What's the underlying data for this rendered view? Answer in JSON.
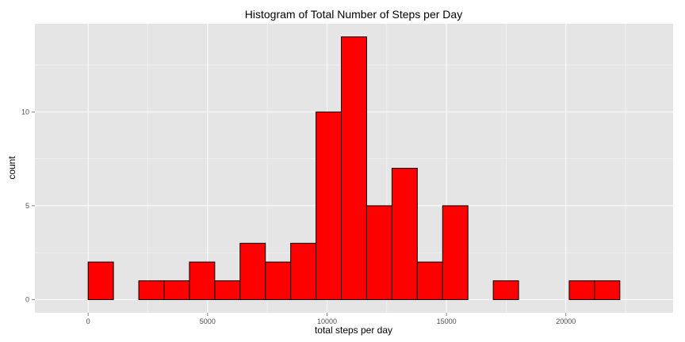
{
  "chart_data": {
    "type": "bar",
    "title": "Histogram of Total Number of Steps per Day",
    "xlabel": "total steps per day",
    "ylabel": "count",
    "bin_width": 1060.0,
    "bins": [
      {
        "start": -1060,
        "end": 0,
        "count": 0
      },
      {
        "start": 0,
        "end": 1060,
        "count": 2
      },
      {
        "start": 1060,
        "end": 2120,
        "count": 0
      },
      {
        "start": 2120,
        "end": 3180,
        "count": 1
      },
      {
        "start": 3180,
        "end": 4240,
        "count": 1
      },
      {
        "start": 4240,
        "end": 5300,
        "count": 2
      },
      {
        "start": 5300,
        "end": 6360,
        "count": 1
      },
      {
        "start": 6360,
        "end": 7420,
        "count": 3
      },
      {
        "start": 7420,
        "end": 8480,
        "count": 2
      },
      {
        "start": 8480,
        "end": 9540,
        "count": 3
      },
      {
        "start": 9540,
        "end": 10600,
        "count": 10
      },
      {
        "start": 10600,
        "end": 11660,
        "count": 14
      },
      {
        "start": 11660,
        "end": 12720,
        "count": 5
      },
      {
        "start": 12720,
        "end": 13780,
        "count": 7
      },
      {
        "start": 13780,
        "end": 14840,
        "count": 2
      },
      {
        "start": 14840,
        "end": 15900,
        "count": 5
      },
      {
        "start": 15900,
        "end": 16960,
        "count": 0
      },
      {
        "start": 16960,
        "end": 18020,
        "count": 1
      },
      {
        "start": 18020,
        "end": 19080,
        "count": 0
      },
      {
        "start": 19080,
        "end": 20140,
        "count": 0
      },
      {
        "start": 20140,
        "end": 21200,
        "count": 1
      },
      {
        "start": 21200,
        "end": 22260,
        "count": 1
      },
      {
        "start": 22260,
        "end": 23320,
        "count": 0
      }
    ],
    "xticks": [
      0,
      5000,
      10000,
      15000,
      20000
    ],
    "yticks": [
      0,
      5,
      10
    ],
    "xlim": [
      -2230,
      24490
    ],
    "ylim": [
      -0.7,
      14.7
    ],
    "grid": true,
    "bar_fill": "#ff0000",
    "bar_stroke": "#000000",
    "panel_background": "#e5e5e5",
    "grid_color": "#ffffff"
  }
}
